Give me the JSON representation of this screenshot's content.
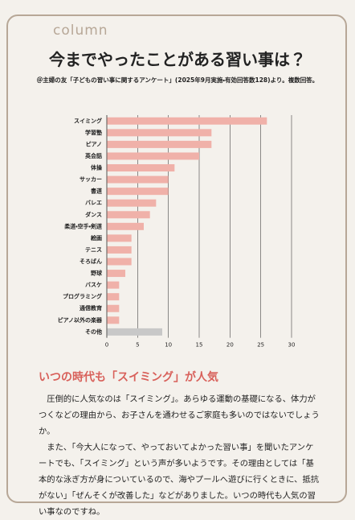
{
  "column_label": "column",
  "chart_data": {
    "type": "bar",
    "orientation": "horizontal",
    "title": "今までやったことがある習い事は？",
    "subtitle": "＠主婦の友「子どもの習い事に関するアンケート」(2025年9月実施・有効回答数128)より。複数回答。",
    "categories": [
      "スイミング",
      "学習塾",
      "ピアノ",
      "英会話",
      "体操",
      "サッカー",
      "書道",
      "バレエ",
      "ダンス",
      "柔道・空手・剣道",
      "絵画",
      "テニス",
      "そろばん",
      "野球",
      "バスケ",
      "プログラミング",
      "通信教育",
      "ピアノ以外の楽器",
      "その他"
    ],
    "values": [
      26,
      17,
      17,
      15,
      11,
      10,
      10,
      8,
      7,
      6,
      4,
      4,
      4,
      3,
      2,
      2,
      2,
      2,
      9
    ],
    "colors": [
      "#f0b1a9",
      "#f0b1a9",
      "#f0b1a9",
      "#f0b1a9",
      "#f0b1a9",
      "#f0b1a9",
      "#f0b1a9",
      "#f0b1a9",
      "#f0b1a9",
      "#f0b1a9",
      "#f0b1a9",
      "#f0b1a9",
      "#f0b1a9",
      "#f0b1a9",
      "#f0b1a9",
      "#f0b1a9",
      "#f0b1a9",
      "#f0b1a9",
      "#c8c8c8"
    ],
    "xlim": [
      0,
      30
    ],
    "xticks": [
      0,
      5,
      10,
      15,
      20,
      25,
      30
    ],
    "grid": true
  },
  "article": {
    "heading": "いつの時代も「スイミング」が人気",
    "paragraphs": [
      "圧倒的に人気なのは「スイミング」。あらゆる運動の基礎になる、体力がつくなどの理由から、お子さんを通わせるご家庭も多いのではないでしょうか。",
      "また、「今大人になって、やっておいてよかった習い事」を聞いたアンケートでも、「スイミング」という声が多いようです。その理由としては「基本的な泳ぎ方が身についているので、海やプールへ遊びに行くときに、抵抗がない」「ぜんそくが改善した」などがありました。いつの時代も人気の習い事なのですね。"
    ]
  }
}
